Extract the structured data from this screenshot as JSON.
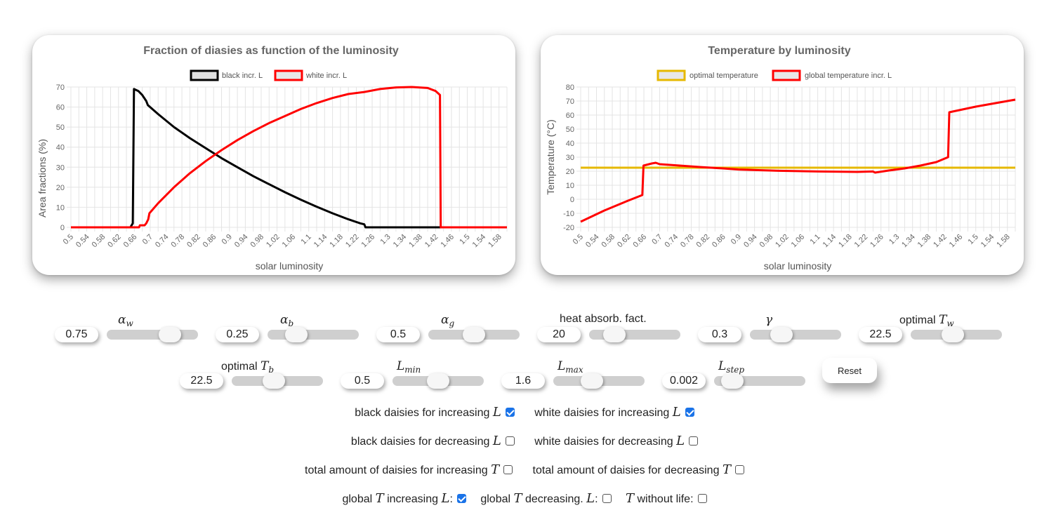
{
  "chart_data": [
    {
      "type": "line",
      "title": "Fraction of diasies as function of the luminosity",
      "xlabel": "solar luminosity",
      "ylabel": "Area fractions (%)",
      "xlim": [
        0.5,
        1.6
      ],
      "ylim": [
        0,
        70
      ],
      "yticks": [
        0,
        10,
        20,
        30,
        40,
        50,
        60,
        70
      ],
      "legend_position": "top",
      "grid": true,
      "series": [
        {
          "name": "black incr. L",
          "color": "#000000",
          "points": [
            [
              0.5,
              0
            ],
            [
              0.65,
              0
            ],
            [
              0.656,
              2
            ],
            [
              0.659,
              69
            ],
            [
              0.67,
              68
            ],
            [
              0.68,
              66
            ],
            [
              0.69,
              63
            ],
            [
              0.694,
              61
            ],
            [
              0.72,
              56.5
            ],
            [
              0.76,
              50
            ],
            [
              0.8,
              44.5
            ],
            [
              0.84,
              39.5
            ],
            [
              0.88,
              34.5
            ],
            [
              0.92,
              30
            ],
            [
              0.96,
              25.5
            ],
            [
              1.0,
              21.5
            ],
            [
              1.04,
              17.5
            ],
            [
              1.08,
              13.8
            ],
            [
              1.12,
              10.3
            ],
            [
              1.16,
              7
            ],
            [
              1.2,
              4
            ],
            [
              1.23,
              2
            ],
            [
              1.24,
              1.5
            ],
            [
              1.243,
              0
            ],
            [
              1.6,
              0
            ]
          ]
        },
        {
          "name": "white incr. L",
          "color": "#ff0000",
          "points": [
            [
              0.5,
              0
            ],
            [
              0.672,
              0
            ],
            [
              0.674,
              1
            ],
            [
              0.686,
              1
            ],
            [
              0.69,
              2
            ],
            [
              0.695,
              4
            ],
            [
              0.698,
              7
            ],
            [
              0.72,
              12
            ],
            [
              0.76,
              20
            ],
            [
              0.8,
              27
            ],
            [
              0.84,
              33
            ],
            [
              0.88,
              38.5
            ],
            [
              0.92,
              43.5
            ],
            [
              0.96,
              48
            ],
            [
              1.0,
              52
            ],
            [
              1.04,
              55.5
            ],
            [
              1.08,
              59
            ],
            [
              1.12,
              62
            ],
            [
              1.16,
              64.5
            ],
            [
              1.2,
              66.5
            ],
            [
              1.24,
              67.5
            ],
            [
              1.28,
              69
            ],
            [
              1.32,
              69.8
            ],
            [
              1.36,
              70
            ],
            [
              1.4,
              69.5
            ],
            [
              1.42,
              68
            ],
            [
              1.431,
              66
            ],
            [
              1.433,
              0
            ],
            [
              1.6,
              0
            ]
          ]
        }
      ]
    },
    {
      "type": "line",
      "title": "Temperature by luminosity",
      "xlabel": "solar luminosity",
      "ylabel": "Temperature (°C)",
      "xlim": [
        0.5,
        1.6
      ],
      "ylim": [
        -20,
        80
      ],
      "yticks": [
        -20,
        -10,
        0,
        10,
        20,
        30,
        40,
        50,
        60,
        70,
        80
      ],
      "legend_position": "top",
      "grid": true,
      "series": [
        {
          "name": "optimal temperature",
          "color": "#e6b800",
          "points": [
            [
              0.5,
              22.5
            ],
            [
              1.6,
              22.5
            ]
          ]
        },
        {
          "name": "global temperature incr. L",
          "color": "#ff0000",
          "points": [
            [
              0.5,
              -16
            ],
            [
              0.56,
              -8
            ],
            [
              0.62,
              -1
            ],
            [
              0.656,
              3
            ],
            [
              0.659,
              24
            ],
            [
              0.68,
              25.5
            ],
            [
              0.69,
              26
            ],
            [
              0.7,
              25
            ],
            [
              0.76,
              23.8
            ],
            [
              0.8,
              23
            ],
            [
              0.86,
              22
            ],
            [
              0.9,
              21.2
            ],
            [
              1.0,
              20.3
            ],
            [
              1.1,
              19.8
            ],
            [
              1.2,
              19.5
            ],
            [
              1.24,
              19.8
            ],
            [
              1.245,
              19
            ],
            [
              1.28,
              20.5
            ],
            [
              1.32,
              22
            ],
            [
              1.36,
              24
            ],
            [
              1.4,
              26.5
            ],
            [
              1.43,
              30
            ],
            [
              1.433,
              62
            ],
            [
              1.5,
              66
            ],
            [
              1.6,
              71
            ]
          ]
        }
      ]
    }
  ],
  "chart1": {
    "title": "Fraction of diasies as function of the luminosity",
    "legend": [
      "black incr. L",
      "white incr. L"
    ],
    "xlabel": "solar luminosity",
    "ylabel": "Area fractions (%)"
  },
  "chart2": {
    "title": "Temperature by luminosity",
    "legend": [
      "optimal temperature",
      "global temperature incr. L"
    ],
    "xlabel": "solar luminosity",
    "ylabel": "Temperature (°C)"
  },
  "xticks": [
    "0.5",
    "0.54",
    "0.58",
    "0.62",
    "0.66",
    "0.7",
    "0.74",
    "0.78",
    "0.82",
    "0.86",
    "0.9",
    "0.94",
    "0.98",
    "1.02",
    "1.06",
    "1.1",
    "1.14",
    "1.18",
    "1.22",
    "1.26",
    "1.3",
    "1.34",
    "1.38",
    "1.42",
    "1.46",
    "1.5",
    "1.54",
    "1.58"
  ],
  "controls": {
    "alpha_w": {
      "value": "0.75",
      "fraction": 0.75
    },
    "alpha_b": {
      "value": "0.25",
      "fraction": 0.25
    },
    "alpha_g": {
      "value": "0.5",
      "fraction": 0.5
    },
    "heat": {
      "label": "heat absorb. fact.",
      "value": "20",
      "fraction": 0.2
    },
    "gamma": {
      "value": "0.3",
      "fraction": 0.3
    },
    "opt_tw": {
      "label": "optimal",
      "value": "22.5",
      "fraction": 0.45
    },
    "opt_tb": {
      "label": "optimal",
      "value": "22.5",
      "fraction": 0.45
    },
    "lmin": {
      "value": "0.5",
      "fraction": 0.5
    },
    "lmax": {
      "value": "1.6",
      "fraction": 0.4
    },
    "lstep": {
      "value": "0.002",
      "fraction": 0.1
    },
    "reset_label": "Reset"
  },
  "checks": {
    "black_inc": {
      "label": "black daisies for increasing",
      "checked": true
    },
    "white_inc": {
      "label": "white daisies for increasing",
      "checked": true
    },
    "black_dec": {
      "label": "black daisies for decreasing",
      "checked": false
    },
    "white_dec": {
      "label": "white daisies for decreasing",
      "checked": false
    },
    "total_inc": {
      "label": "total amount of daisies for increasing",
      "checked": false
    },
    "total_dec": {
      "label": "total amount of daisies for decreasing",
      "checked": false
    },
    "global_inc": {
      "label_a": "global",
      "label_b": "increasing",
      "label_c": ":",
      "checked": true
    },
    "global_dec": {
      "label_a": "global",
      "label_b": "decreasing.",
      "label_c": ":",
      "checked": false
    },
    "no_life": {
      "label": "without life:",
      "checked": false
    }
  }
}
